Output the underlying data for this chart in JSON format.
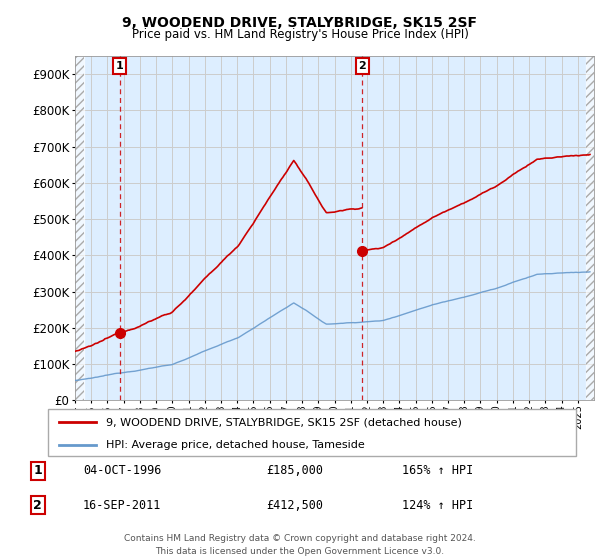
{
  "title": "9, WOODEND DRIVE, STALYBRIDGE, SK15 2SF",
  "subtitle": "Price paid vs. HM Land Registry's House Price Index (HPI)",
  "ylim": [
    0,
    950000
  ],
  "yticks": [
    0,
    100000,
    200000,
    300000,
    400000,
    500000,
    600000,
    700000,
    800000,
    900000
  ],
  "ytick_labels": [
    "£0",
    "£100K",
    "£200K",
    "£300K",
    "£400K",
    "£500K",
    "£600K",
    "£700K",
    "£800K",
    "£900K"
  ],
  "sale1_date": 1996.75,
  "sale1_price": 185000,
  "sale2_date": 2011.71,
  "sale2_price": 412500,
  "red_line_color": "#cc0000",
  "blue_line_color": "#6699cc",
  "grid_color": "#cccccc",
  "bg_color": "#ddeeff",
  "legend_label_red": "9, WOODEND DRIVE, STALYBRIDGE, SK15 2SF (detached house)",
  "legend_label_blue": "HPI: Average price, detached house, Tameside",
  "footer": "Contains HM Land Registry data © Crown copyright and database right 2024.\nThis data is licensed under the Open Government Licence v3.0.",
  "xmin": 1994,
  "xmax": 2026
}
